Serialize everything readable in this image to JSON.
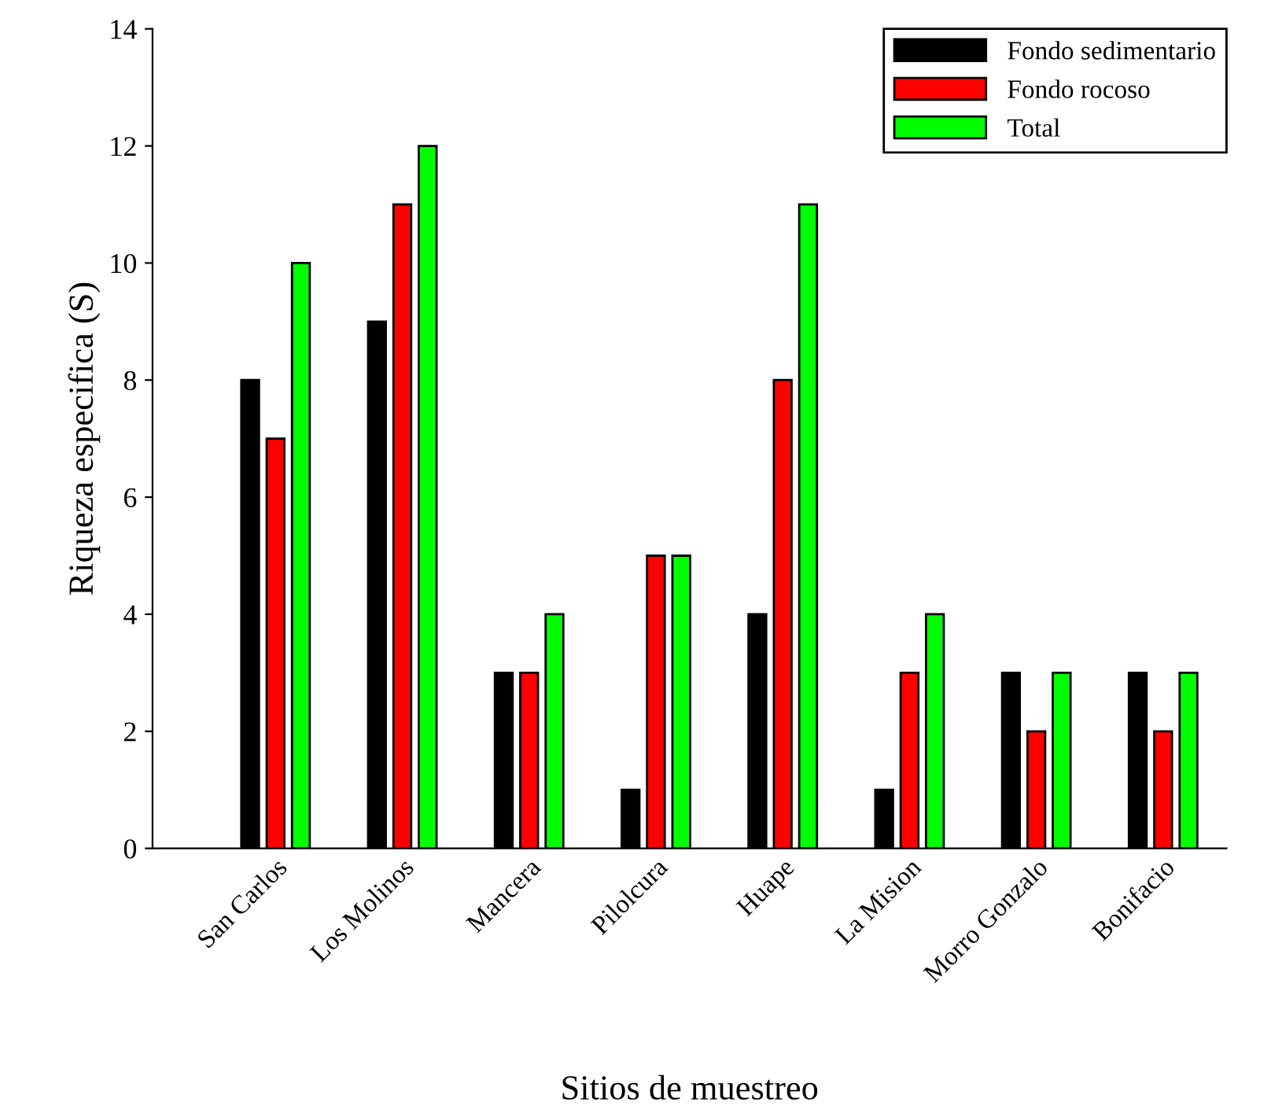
{
  "chart_data": {
    "type": "bar",
    "xlabel": "Sitios de muestreo",
    "ylabel": "Riqueza especifica (S)",
    "categories": [
      "San Carlos",
      "Los Molinos",
      "Mancera",
      "Pilolcura",
      "Huape",
      "La Mision",
      "Morro Gonzalo",
      "Bonifacio"
    ],
    "series": [
      {
        "name": "Fondo sedimentario",
        "color": "#000000",
        "values": [
          8,
          9,
          3,
          1,
          4,
          1,
          3,
          3
        ]
      },
      {
        "name": "Fondo rocoso",
        "color": "#ff0000",
        "values": [
          7,
          11,
          3,
          5,
          8,
          3,
          2,
          2
        ]
      },
      {
        "name": "Total",
        "color": "#00ff00",
        "values": [
          10,
          12,
          4,
          5,
          11,
          4,
          3,
          3
        ]
      }
    ],
    "ylim": [
      0,
      14
    ],
    "yticks": [
      0,
      2,
      4,
      6,
      8,
      10,
      12,
      14
    ],
    "grid": false,
    "legend": "top right"
  }
}
